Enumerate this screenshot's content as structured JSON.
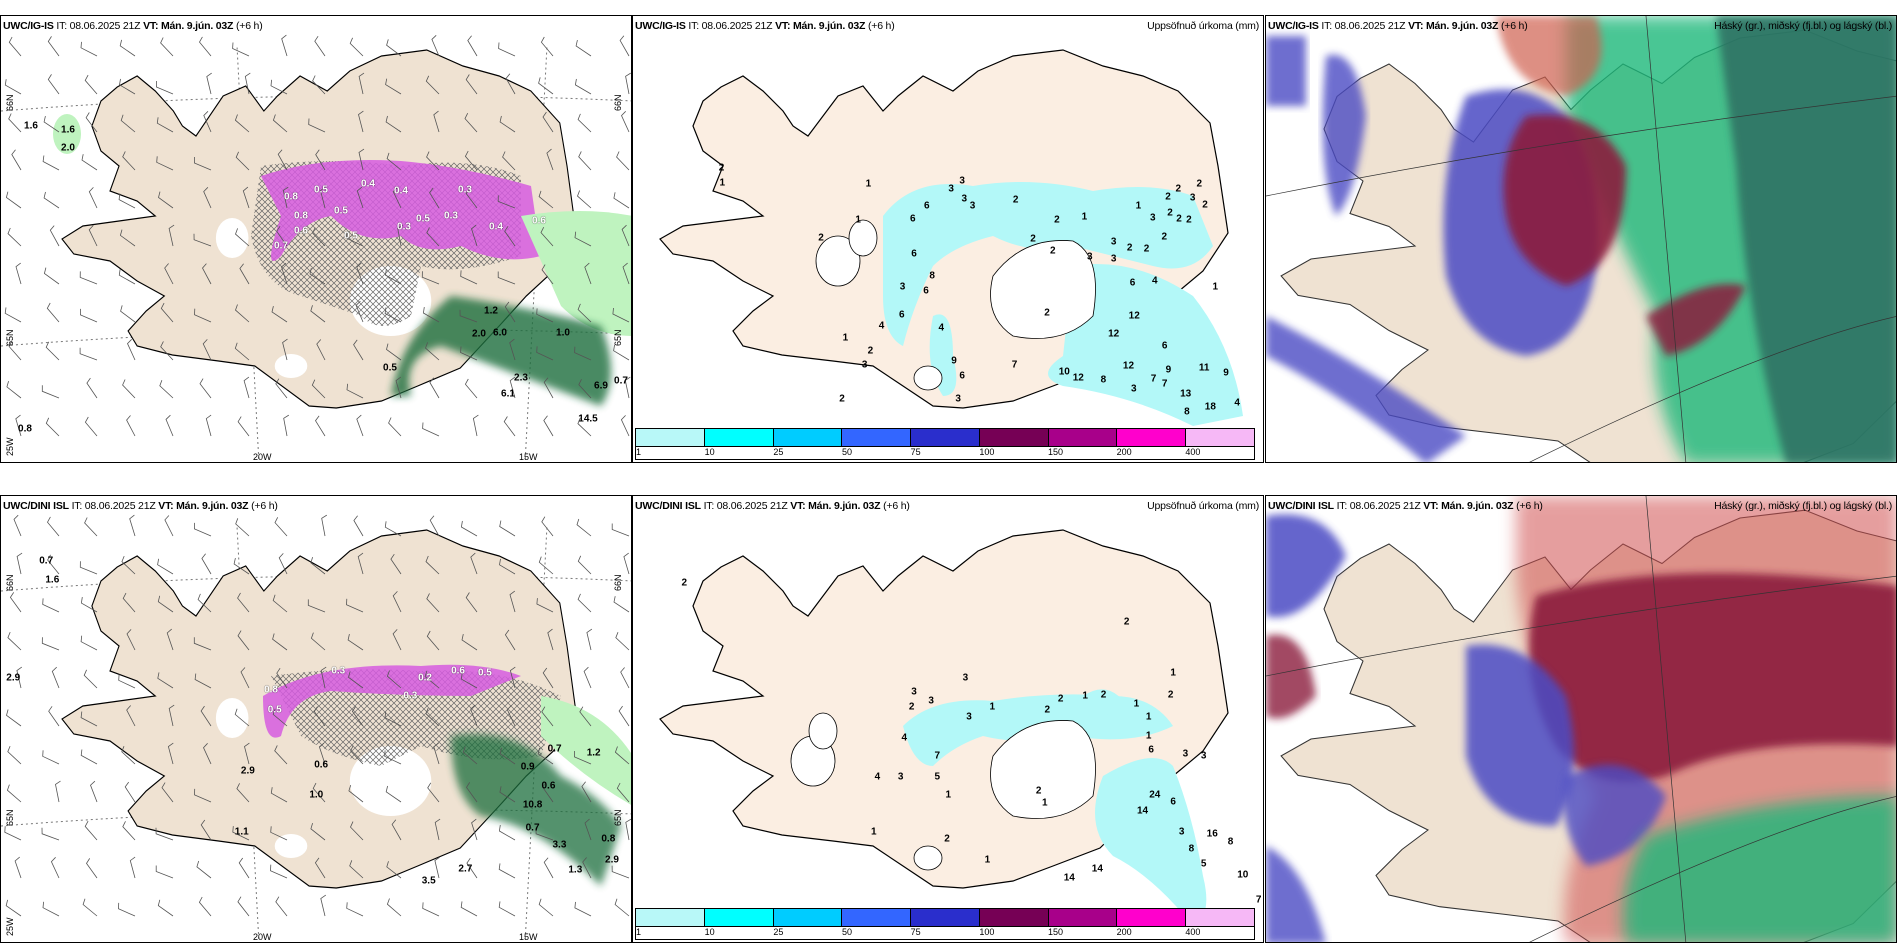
{
  "panels": [
    {
      "model": "UWC/IG-IS",
      "it": "IT: 08.06.2025 21Z",
      "vt": "VT: Mán. 9.jún. 03Z",
      "lead": "(+6 h)",
      "title": "",
      "axes": {
        "lat_right": "66N",
        "lat_right2": "65N",
        "lat_left": "66N",
        "lat_left2": "65N",
        "lon_left": "25W",
        "lon1": "20W",
        "lon2": "15W"
      },
      "labels": [
        "2.0",
        "1.6",
        "0.8",
        "0.5",
        "0.4",
        "0.4",
        "0.5",
        "0.3",
        "0.4",
        "0.6",
        "0.3",
        "0.5",
        "0.6",
        "0.7",
        "0.8",
        "0.5",
        "0.3",
        "1.2",
        "6.0",
        "1.0",
        "2.0",
        "0.5",
        "6.1",
        "2.3",
        "14.5",
        "6.9",
        "0.7",
        "0.8",
        "1.6"
      ]
    },
    {
      "model": "UWC/IG-IS",
      "it": "IT: 08.06.2025 21Z",
      "vt": "VT: Mán. 9.jún. 03Z",
      "lead": "(+6 h)",
      "title": "Uppsöfnuð úrkoma (mm)",
      "labels": [
        "1",
        "2",
        "1",
        "1",
        "2",
        "3",
        "3",
        "3",
        "3",
        "6",
        "6",
        "2",
        "2",
        "1",
        "1",
        "2",
        "3",
        "2",
        "2",
        "3",
        "2",
        "2",
        "6",
        "8",
        "3",
        "6",
        "6",
        "4",
        "4",
        "1",
        "2",
        "3",
        "9",
        "6",
        "3",
        "2",
        "7",
        "2",
        "6",
        "4",
        "12",
        "12",
        "6",
        "10",
        "12",
        "8",
        "12",
        "9",
        "11",
        "9",
        "7",
        "7",
        "3",
        "13",
        "8",
        "18",
        "4",
        "1",
        "2",
        "2",
        "3",
        "2",
        "2",
        "2",
        "2",
        "2",
        "3",
        "3"
      ]
    },
    {
      "model": "UWC/IG-IS",
      "it": "IT: 08.06.2025 21Z",
      "vt": "VT: Mán. 9.jún. 03Z",
      "lead": "(+6 h)",
      "title": "Háský (gr.), miðský (fj.bl.) og lágský (bl.)"
    },
    {
      "model": "UWC/DINI ISL",
      "it": "IT: 08.06.2025 21Z",
      "vt": "VT: Mán. 9.jún. 03Z",
      "lead": "(+6 h)",
      "title": "",
      "axes": {
        "lat_right": "66N",
        "lat_right2": "65N",
        "lat_left": "66N",
        "lat_left2": "65N",
        "lon_left": "25W",
        "lon1": "20W",
        "lon2": "15W"
      },
      "labels": [
        "0.7",
        "1.6",
        "2.9",
        "2.9",
        "0.6",
        "1.0",
        "1.1",
        "0.7",
        "1.2",
        "0.9",
        "0.6",
        "10.8",
        "0.7",
        "3.3",
        "0.8",
        "1.3",
        "2.9",
        "2.7",
        "3.5",
        "0.8",
        "0.5",
        "0.3",
        "0.2",
        "0.5",
        "0.6",
        "0.3"
      ]
    },
    {
      "model": "UWC/DINI ISL",
      "it": "IT: 08.06.2025 21Z",
      "vt": "VT: Mán. 9.jún. 03Z",
      "lead": "(+6 h)",
      "title": "Uppsöfnuð úrkoma (mm)",
      "labels": [
        "2",
        "2",
        "1",
        "3",
        "3",
        "2",
        "3",
        "2",
        "1",
        "2",
        "1",
        "2",
        "4",
        "3",
        "4",
        "3",
        "7",
        "5",
        "1",
        "2",
        "6",
        "3",
        "3",
        "24",
        "14",
        "6",
        "3",
        "8",
        "16",
        "8",
        "5",
        "10",
        "7",
        "14",
        "14",
        "1",
        "2",
        "1",
        "1",
        "1",
        "2",
        "1",
        "1"
      ]
    },
    {
      "model": "UWC/DINI ISL",
      "it": "IT: 08.06.2025 21Z",
      "vt": "VT: Mán. 9.jún. 03Z",
      "lead": "(+6 h)",
      "title": "Háský (gr.), miðský (fj.bl.) og lágský (bl.)"
    }
  ],
  "colorbar": {
    "colors": [
      "#b8f8f8",
      "#00ffff",
      "#00ccff",
      "#3366ff",
      "#2a2ecc",
      "#760055",
      "#a8008a",
      "#ff00cc",
      "#f6b8f6"
    ],
    "ticks": [
      "1",
      "10",
      "25",
      "50",
      "75",
      "100",
      "150",
      "200",
      "400"
    ]
  },
  "colors": {
    "land": "#efe2d2",
    "land_precip": "#fbeee2",
    "magenta": "#d65ce0",
    "green_light": "#bff3bf",
    "green_dark": "#1e6e3c",
    "navy": "#2a2a6a",
    "cloud_high": "#1fb87a",
    "cloud_mid": "#8b1a3c",
    "cloud_low": "#4b4cc4"
  }
}
